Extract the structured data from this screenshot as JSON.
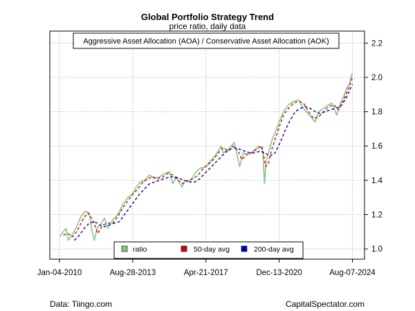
{
  "chart_data": {
    "type": "line",
    "title": "Global Portfolio Strategy Trend",
    "subtitle": "price ratio, daily data",
    "annotation": "Aggressive Asset Allocation (AOA) / Conservative Asset Allocation (AOK)",
    "xlabel": "",
    "ylabel": "",
    "x_tick_labels": [
      "Jan-04-2010",
      "Aug-28-2013",
      "Apr-21-2017",
      "Dec-13-2020",
      "Aug-07-2024"
    ],
    "y_ticks": [
      1.0,
      1.2,
      1.4,
      1.6,
      1.8,
      2.0,
      2.2
    ],
    "y_tick_labels": [
      "1.0",
      "1.2",
      "1.4",
      "1.6",
      "1.8",
      "2.0",
      "2.2"
    ],
    "y_axis_side": "right",
    "ylim": [
      0.94,
      2.27
    ],
    "xlim": [
      "2009-07-12",
      "2025-03-15"
    ],
    "grid": true,
    "legend_position": "bottom-center",
    "colors": {
      "ratio": "#7fc97f",
      "ma50": "#dd0000",
      "ma200": "#0000cc",
      "grid": "#b0b0b0"
    },
    "series": [
      {
        "name": "ratio",
        "style": "solid",
        "x": [
          "2010-01-04",
          "2010-03-15",
          "2010-05-01",
          "2010-06-15",
          "2010-08-15",
          "2010-11-01",
          "2011-01-15",
          "2011-04-15",
          "2011-07-01",
          "2011-08-20",
          "2011-10-01",
          "2011-11-20",
          "2012-01-15",
          "2012-04-01",
          "2012-06-01",
          "2012-09-01",
          "2012-12-01",
          "2013-03-01",
          "2013-06-01",
          "2013-08-28",
          "2013-11-01",
          "2014-01-15",
          "2014-04-01",
          "2014-07-01",
          "2014-10-01",
          "2015-01-01",
          "2015-04-01",
          "2015-07-01",
          "2015-08-25",
          "2015-11-01",
          "2016-02-10",
          "2016-04-01",
          "2016-07-01",
          "2016-10-01",
          "2017-01-01",
          "2017-04-21",
          "2017-07-01",
          "2017-10-01",
          "2018-01-25",
          "2018-03-01",
          "2018-06-01",
          "2018-09-20",
          "2018-12-24",
          "2019-03-01",
          "2019-06-01",
          "2019-09-01",
          "2019-12-01",
          "2020-01-20",
          "2020-02-20",
          "2020-03-23",
          "2020-04-15",
          "2020-06-01",
          "2020-08-01",
          "2020-10-01",
          "2020-12-13",
          "2021-03-01",
          "2021-06-01",
          "2021-09-01",
          "2021-12-01",
          "2022-03-01",
          "2022-06-15",
          "2022-09-30",
          "2022-12-01",
          "2023-03-01",
          "2023-06-01",
          "2023-08-01",
          "2023-10-27",
          "2024-01-01",
          "2024-03-01",
          "2024-05-01",
          "2024-06-15",
          "2024-07-15",
          "2024-08-07"
        ],
        "values": [
          1.07,
          1.1,
          1.12,
          1.05,
          1.08,
          1.12,
          1.18,
          1.22,
          1.21,
          1.1,
          1.05,
          1.12,
          1.14,
          1.18,
          1.12,
          1.17,
          1.2,
          1.26,
          1.3,
          1.32,
          1.36,
          1.39,
          1.4,
          1.43,
          1.41,
          1.42,
          1.44,
          1.45,
          1.38,
          1.42,
          1.36,
          1.4,
          1.39,
          1.44,
          1.47,
          1.48,
          1.51,
          1.54,
          1.6,
          1.56,
          1.58,
          1.62,
          1.48,
          1.56,
          1.55,
          1.57,
          1.6,
          1.59,
          1.56,
          1.38,
          1.5,
          1.56,
          1.63,
          1.68,
          1.74,
          1.8,
          1.84,
          1.86,
          1.87,
          1.82,
          1.78,
          1.74,
          1.8,
          1.82,
          1.84,
          1.85,
          1.78,
          1.85,
          1.89,
          1.94,
          1.96,
          2.01,
          2.02
        ]
      },
      {
        "name": "50-day avg",
        "style": "dashed",
        "x": [
          "2010-03-15",
          "2010-06-01",
          "2010-09-01",
          "2010-12-01",
          "2011-03-01",
          "2011-06-01",
          "2011-09-01",
          "2011-12-01",
          "2012-03-01",
          "2012-06-01",
          "2012-09-01",
          "2012-12-01",
          "2013-03-01",
          "2013-06-01",
          "2013-09-01",
          "2013-12-01",
          "2014-03-01",
          "2014-06-01",
          "2014-09-01",
          "2014-12-01",
          "2015-03-01",
          "2015-06-01",
          "2015-09-01",
          "2015-12-01",
          "2016-03-01",
          "2016-06-01",
          "2016-09-01",
          "2016-12-01",
          "2017-03-01",
          "2017-06-01",
          "2017-09-01",
          "2017-12-01",
          "2018-03-01",
          "2018-06-01",
          "2018-09-01",
          "2018-12-01",
          "2019-02-01",
          "2019-05-01",
          "2019-08-01",
          "2019-11-01",
          "2020-02-01",
          "2020-04-15",
          "2020-06-01",
          "2020-08-01",
          "2020-10-01",
          "2020-12-01",
          "2021-03-01",
          "2021-06-01",
          "2021-09-01",
          "2021-12-01",
          "2022-03-01",
          "2022-06-01",
          "2022-09-01",
          "2022-12-01",
          "2023-03-01",
          "2023-06-01",
          "2023-09-01",
          "2023-12-01",
          "2024-03-01",
          "2024-06-01",
          "2024-08-07"
        ],
        "values": [
          1.08,
          1.09,
          1.07,
          1.11,
          1.17,
          1.21,
          1.17,
          1.09,
          1.14,
          1.15,
          1.15,
          1.19,
          1.24,
          1.28,
          1.32,
          1.35,
          1.39,
          1.41,
          1.42,
          1.41,
          1.42,
          1.44,
          1.43,
          1.4,
          1.38,
          1.4,
          1.41,
          1.43,
          1.47,
          1.49,
          1.52,
          1.56,
          1.59,
          1.57,
          1.6,
          1.57,
          1.52,
          1.55,
          1.56,
          1.58,
          1.6,
          1.48,
          1.5,
          1.58,
          1.64,
          1.7,
          1.78,
          1.82,
          1.85,
          1.86,
          1.85,
          1.8,
          1.76,
          1.77,
          1.8,
          1.83,
          1.84,
          1.81,
          1.87,
          1.94,
          2.0
        ]
      },
      {
        "name": "200-day avg",
        "style": "dashed",
        "x": [
          "2010-10-01",
          "2011-01-01",
          "2011-04-01",
          "2011-07-01",
          "2011-10-01",
          "2012-01-01",
          "2012-04-01",
          "2012-07-01",
          "2012-10-01",
          "2013-01-01",
          "2013-04-01",
          "2013-07-01",
          "2013-10-01",
          "2014-01-01",
          "2014-04-01",
          "2014-07-01",
          "2014-10-01",
          "2015-01-01",
          "2015-04-01",
          "2015-07-01",
          "2015-10-01",
          "2016-01-01",
          "2016-04-01",
          "2016-07-01",
          "2016-10-01",
          "2017-01-01",
          "2017-04-01",
          "2017-07-01",
          "2017-10-01",
          "2018-01-01",
          "2018-04-01",
          "2018-07-01",
          "2018-10-01",
          "2019-01-01",
          "2019-04-01",
          "2019-07-01",
          "2019-10-01",
          "2020-01-01",
          "2020-04-01",
          "2020-07-01",
          "2020-10-01",
          "2021-01-01",
          "2021-04-01",
          "2021-07-01",
          "2021-10-01",
          "2022-01-01",
          "2022-04-01",
          "2022-07-01",
          "2022-10-01",
          "2023-01-01",
          "2023-04-01",
          "2023-07-01",
          "2023-10-01",
          "2024-01-01",
          "2024-04-01",
          "2024-08-07"
        ],
        "values": [
          1.05,
          1.08,
          1.12,
          1.15,
          1.16,
          1.14,
          1.13,
          1.14,
          1.15,
          1.16,
          1.2,
          1.24,
          1.28,
          1.32,
          1.35,
          1.38,
          1.39,
          1.4,
          1.41,
          1.42,
          1.42,
          1.41,
          1.4,
          1.39,
          1.39,
          1.41,
          1.44,
          1.47,
          1.5,
          1.53,
          1.56,
          1.58,
          1.59,
          1.58,
          1.57,
          1.56,
          1.56,
          1.57,
          1.56,
          1.54,
          1.56,
          1.62,
          1.69,
          1.75,
          1.8,
          1.82,
          1.83,
          1.82,
          1.8,
          1.79,
          1.8,
          1.81,
          1.82,
          1.83,
          1.87,
          1.96
        ]
      }
    ],
    "legend": [
      "ratio",
      "50-day avg",
      "200-day avg"
    ]
  },
  "footer": {
    "left": "Data: Tiingo.com",
    "right": "CapitalSpectator.com"
  }
}
